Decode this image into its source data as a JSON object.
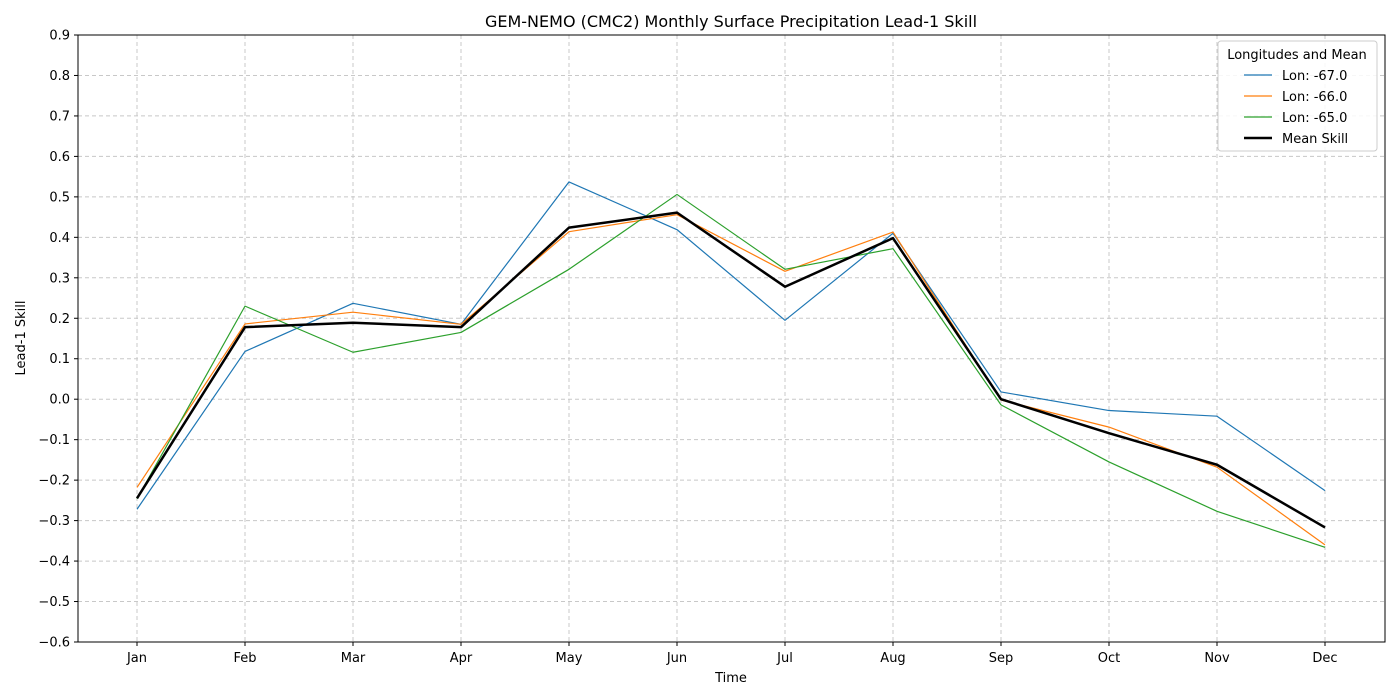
{
  "chart_data": {
    "type": "line",
    "title": "GEM-NEMO (CMC2) Monthly Surface Precipitation Lead-1 Skill",
    "xlabel": "Time",
    "ylabel": "Lead-1 Skill",
    "categories": [
      "Jan",
      "Feb",
      "Mar",
      "Apr",
      "May",
      "Jun",
      "Jul",
      "Aug",
      "Sep",
      "Oct",
      "Nov",
      "Dec"
    ],
    "ylim": [
      -0.6,
      0.9
    ],
    "yticks": [
      "-0.6",
      "-0.5",
      "-0.4",
      "-0.3",
      "-0.2",
      "-0.1",
      "0.0",
      "0.1",
      "0.2",
      "0.3",
      "0.4",
      "0.5",
      "0.6",
      "0.7",
      "0.8",
      "0.9"
    ],
    "grid": true,
    "legend": {
      "title": "Longitudes and Mean",
      "position": "top-right"
    },
    "series": [
      {
        "name": "Lon: -67.0",
        "color": "#1f77b4",
        "bold": false,
        "values": [
          -0.272,
          0.118,
          0.237,
          0.185,
          0.537,
          0.419,
          0.195,
          0.41,
          0.018,
          -0.028,
          -0.042,
          -0.226
        ]
      },
      {
        "name": "Lon: -66.0",
        "color": "#ff7f0e",
        "bold": false,
        "values": [
          -0.218,
          0.186,
          0.215,
          0.185,
          0.414,
          0.456,
          0.316,
          0.413,
          -0.002,
          -0.069,
          -0.168,
          -0.36
        ]
      },
      {
        "name": "Lon: -65.0",
        "color": "#2ca02c",
        "bold": false,
        "values": [
          -0.246,
          0.23,
          0.116,
          0.165,
          0.321,
          0.506,
          0.321,
          0.372,
          -0.014,
          -0.155,
          -0.277,
          -0.366
        ]
      },
      {
        "name": "Mean Skill",
        "color": "#000000",
        "bold": true,
        "values": [
          -0.245,
          0.178,
          0.189,
          0.178,
          0.424,
          0.461,
          0.278,
          0.398,
          0.0,
          -0.084,
          -0.162,
          -0.317
        ]
      }
    ]
  }
}
